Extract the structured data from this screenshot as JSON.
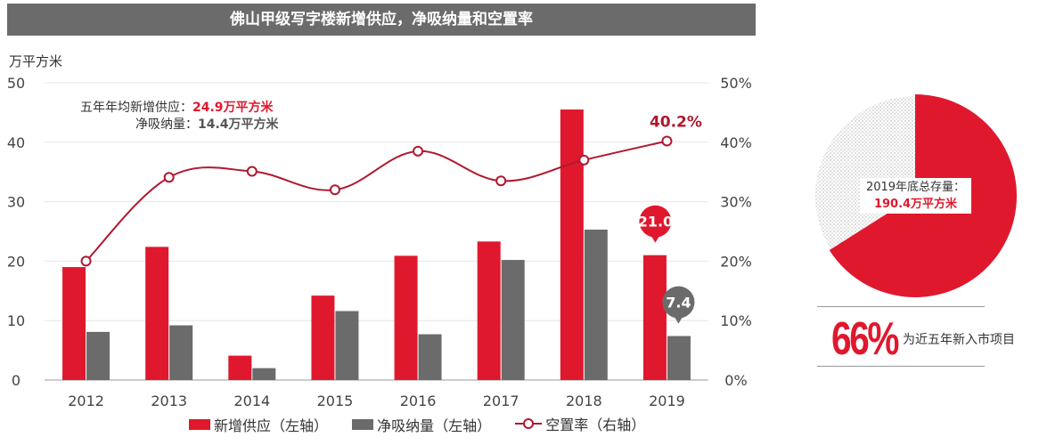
{
  "title": "佛山甲级写字楼新增供应，净吸纳量和空置率",
  "chart_data": {
    "type": "bar",
    "categories": [
      "2012",
      "2013",
      "2014",
      "2015",
      "2016",
      "2017",
      "2018",
      "2019"
    ],
    "series": [
      {
        "name": "新增供应（左轴）",
        "axis": "left",
        "values": [
          19,
          22.4,
          4.1,
          14.2,
          20.9,
          23.3,
          45.5,
          21.0
        ],
        "color": "#e0182d"
      },
      {
        "name": "净吸纳量（左轴）",
        "axis": "left",
        "values": [
          8.1,
          9.2,
          2.0,
          11.6,
          7.7,
          20.2,
          25.3,
          7.4
        ],
        "color": "#6b6b6b"
      },
      {
        "name": "空置率（右轴）",
        "axis": "right",
        "type": "line",
        "values": [
          20,
          34.1,
          35.1,
          32.0,
          38.5,
          33.5,
          37.0,
          40.2
        ],
        "color": "#b0182f"
      }
    ],
    "left_axis": {
      "unit_label": "万平方米",
      "ylim": [
        0,
        50
      ],
      "ticks": [
        "0",
        "10",
        "20",
        "30",
        "40",
        "50"
      ]
    },
    "right_axis": {
      "ylim": [
        0,
        50
      ],
      "ticks": [
        "0%",
        "10%",
        "20%",
        "30%",
        "40%",
        "50%"
      ]
    },
    "grid": true,
    "callouts": [
      {
        "text": "21.0",
        "series": 0,
        "index": 7,
        "color": "#e0182d"
      },
      {
        "text": "7.4",
        "series": 1,
        "index": 7,
        "color": "#6b6b6b"
      },
      {
        "text": "40.2%",
        "series": 2,
        "index": 7,
        "color": "#b0182f"
      }
    ]
  },
  "stats": {
    "avg_supply_label": "五年年均新增供应：",
    "avg_supply_value": "24.9万平方米",
    "net_absorption_label": "净吸纳量：",
    "net_absorption_value": "14.4万平方米"
  },
  "pie": {
    "label": "2019年底总存量：",
    "value": "190.4万平方米",
    "share_percent": 66,
    "color": "#e0182d"
  },
  "summary": {
    "percent": "66%",
    "text": "为近五年新入市项目"
  },
  "legend": [
    "新增供应（左轴）",
    "净吸纳量（左轴）",
    "空置率（右轴）"
  ]
}
